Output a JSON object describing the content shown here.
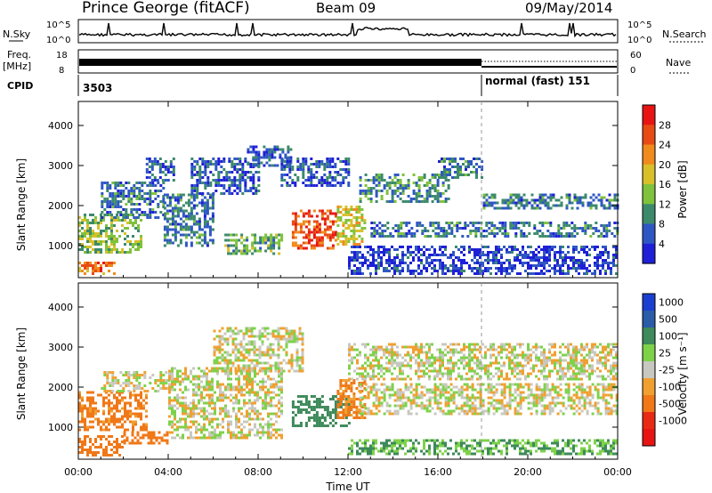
{
  "header": {
    "station": "Prince George (fitACF)",
    "beam": "Beam 09",
    "date": "09/May/2014"
  },
  "summary_panels": {
    "nsky": {
      "label": "N.Sky",
      "ticks": [
        "10^5",
        "10^0"
      ],
      "right_ticks": [
        "10^5",
        "10^0"
      ],
      "right_label": "N.Search"
    },
    "freq": {
      "label": "Freq.",
      "unit": "[MHz]",
      "ticks": [
        "18",
        "8"
      ],
      "right_ticks": [
        "60",
        "0"
      ],
      "right_label": "Nave"
    },
    "cpid": {
      "label": "CPID",
      "segments": [
        {
          "start_h": 0,
          "text": "3503"
        },
        {
          "start_h": 18,
          "text": "normal (fast) 151"
        }
      ]
    }
  },
  "chart_data": [
    {
      "type": "heatmap",
      "ylabel": "Slant Range [km]",
      "xlabel": "",
      "xlim": [
        0,
        24
      ],
      "ylim": [
        200,
        4600
      ],
      "xticks": [
        "00:00",
        "04:00",
        "08:00",
        "12:00",
        "16:00",
        "20:00",
        "00:00"
      ],
      "yticks": [
        1000,
        2000,
        3000,
        4000
      ],
      "colorbar": {
        "label": "Power [dB]",
        "ticks": [
          "4",
          "8",
          "12",
          "16",
          "20",
          "24",
          "28"
        ],
        "colors": [
          "#1f1fd8",
          "#2f57c4",
          "#3c8a6c",
          "#7fc23c",
          "#d8c02a",
          "#f08a1c",
          "#e84a14",
          "#e81414"
        ]
      },
      "bands": [
        {
          "x": [
            0.0,
            1.6
          ],
          "y": [
            300,
            600
          ],
          "value": 24
        },
        {
          "x": [
            0.0,
            2.8
          ],
          "y": [
            800,
            1800
          ],
          "value": 14
        },
        {
          "x": [
            1.0,
            3.8
          ],
          "y": [
            1700,
            2600
          ],
          "value": 8
        },
        {
          "x": [
            3.0,
            4.2
          ],
          "y": [
            2600,
            3200
          ],
          "value": 6
        },
        {
          "x": [
            3.8,
            6.0
          ],
          "y": [
            1000,
            2300
          ],
          "value": 8
        },
        {
          "x": [
            5.0,
            8.0
          ],
          "y": [
            2300,
            3200
          ],
          "value": 6
        },
        {
          "x": [
            6.5,
            9.0
          ],
          "y": [
            800,
            1300
          ],
          "value": 12
        },
        {
          "x": [
            7.5,
            9.5
          ],
          "y": [
            3000,
            3500
          ],
          "value": 6
        },
        {
          "x": [
            9.5,
            11.5
          ],
          "y": [
            900,
            1900
          ],
          "value": 26
        },
        {
          "x": [
            11.5,
            12.8
          ],
          "y": [
            1000,
            2000
          ],
          "value": 18
        },
        {
          "x": [
            9.0,
            12.0
          ],
          "y": [
            2500,
            3200
          ],
          "value": 6
        },
        {
          "x": [
            12.5,
            16.5
          ],
          "y": [
            2100,
            2800
          ],
          "value": 10
        },
        {
          "x": [
            16.0,
            18.0
          ],
          "y": [
            2700,
            3200
          ],
          "value": 8
        },
        {
          "x": [
            13.0,
            24.0
          ],
          "y": [
            1200,
            1600
          ],
          "value": 8
        },
        {
          "x": [
            18.0,
            24.0
          ],
          "y": [
            1900,
            2300
          ],
          "value": 8
        },
        {
          "x": [
            12.0,
            24.0
          ],
          "y": [
            300,
            1000
          ],
          "value": 4
        }
      ]
    },
    {
      "type": "heatmap",
      "ylabel": "Slant Range [km]",
      "xlabel": "Time UT",
      "xlim": [
        0,
        24
      ],
      "ylim": [
        200,
        4600
      ],
      "xticks": [
        "00:00",
        "04:00",
        "08:00",
        "12:00",
        "16:00",
        "20:00",
        "00:00"
      ],
      "yticks": [
        1000,
        2000,
        3000,
        4000
      ],
      "colorbar": {
        "label": "Velocity [m s⁻¹]",
        "ticks": [
          "1000",
          "500",
          "100",
          "25",
          "-25",
          "-100",
          "-500",
          "-1000"
        ],
        "colors": [
          "#1a3fd0",
          "#2a5ca8",
          "#3e8a5a",
          "#7ed24a",
          "#c8c8c0",
          "#f0a030",
          "#f07818",
          "#e82a14",
          "#e81414"
        ]
      },
      "bands": [
        {
          "x": [
            0.0,
            2.0
          ],
          "y": [
            300,
            800
          ],
          "value": -300
        },
        {
          "x": [
            0.0,
            3.0
          ],
          "y": [
            900,
            1900
          ],
          "value": -150
        },
        {
          "x": [
            2.0,
            4.0
          ],
          "y": [
            600,
            900
          ],
          "value": -200
        },
        {
          "x": [
            1.0,
            4.0
          ],
          "y": [
            1900,
            2400
          ],
          "value": 0
        },
        {
          "x": [
            4.0,
            9.0
          ],
          "y": [
            700,
            2500
          ],
          "value": 0
        },
        {
          "x": [
            6.0,
            10.0
          ],
          "y": [
            2400,
            3500
          ],
          "value": 0
        },
        {
          "x": [
            9.5,
            12.0
          ],
          "y": [
            1000,
            1800
          ],
          "value": 200
        },
        {
          "x": [
            11.5,
            12.8
          ],
          "y": [
            1200,
            2200
          ],
          "value": -150
        },
        {
          "x": [
            12.5,
            24.0
          ],
          "y": [
            1300,
            2100
          ],
          "value": 0
        },
        {
          "x": [
            12.0,
            24.0
          ],
          "y": [
            2200,
            3100
          ],
          "value": 0
        },
        {
          "x": [
            12.0,
            24.0
          ],
          "y": [
            300,
            700
          ],
          "value": 100
        }
      ]
    }
  ]
}
